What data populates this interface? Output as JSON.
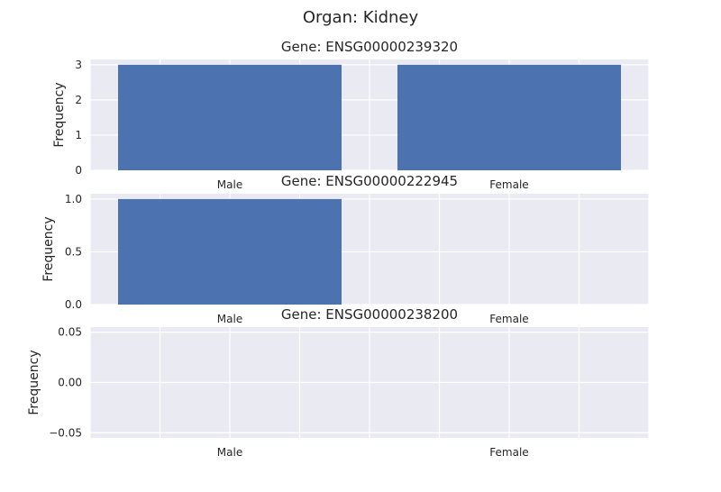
{
  "suptitle": "Organ: Kidney",
  "chart_data": [
    {
      "type": "bar",
      "title": "Gene: ENSG00000239320",
      "ylabel": "Frequency",
      "categories": [
        "Male",
        "Female"
      ],
      "values": [
        3,
        3
      ],
      "ylim": [
        0,
        3.15
      ],
      "yticks": [
        0,
        1,
        2,
        3
      ],
      "ytick_labels": [
        "0",
        "1",
        "2",
        "3"
      ],
      "bar_color": "#4C72B0",
      "grid": true
    },
    {
      "type": "bar",
      "title": "Gene: ENSG00000222945",
      "ylabel": "Frequency",
      "categories": [
        "Male",
        "Female"
      ],
      "values": [
        1,
        0
      ],
      "ylim": [
        0,
        1.05
      ],
      "yticks": [
        0.0,
        0.5,
        1.0
      ],
      "ytick_labels": [
        "0.0",
        "0.5",
        "1.0"
      ],
      "bar_color": "#4C72B0",
      "grid": true
    },
    {
      "type": "bar",
      "title": "Gene: ENSG00000238200",
      "ylabel": "Frequency",
      "categories": [
        "Male",
        "Female"
      ],
      "values": [
        0,
        0
      ],
      "ylim": [
        -0.055,
        0.055
      ],
      "yticks": [
        -0.05,
        0.0,
        0.05
      ],
      "ytick_labels": [
        "−0.05",
        "0.00",
        "0.05"
      ],
      "bar_color": "#4C72B0",
      "grid": true
    }
  ]
}
